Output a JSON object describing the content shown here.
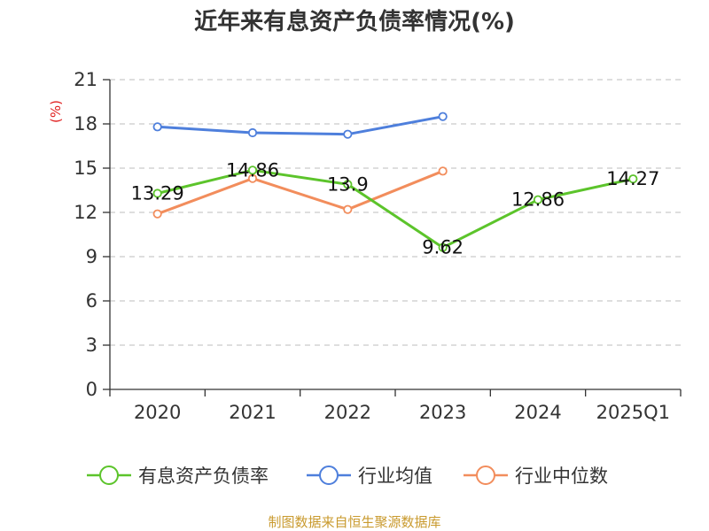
{
  "chart_data": {
    "type": "line",
    "title": "近年来有息资产负债率情况(%)",
    "unit_label": "(%)",
    "categories": [
      "2020",
      "2021",
      "2022",
      "2023",
      "2024",
      "2025Q1"
    ],
    "ylim": [
      0,
      21
    ],
    "yticks": [
      "0",
      "3",
      "6",
      "9",
      "12",
      "15",
      "18",
      "21"
    ],
    "grid": true,
    "legend_position": "bottom",
    "series": [
      {
        "name": "有息资产负债率",
        "color": "#5cc42b",
        "values": [
          13.29,
          14.86,
          13.9,
          9.62,
          12.86,
          14.27
        ],
        "data_labels": [
          "13.29",
          "14.86",
          "13.9",
          "9.62",
          "12.86",
          "14.27"
        ]
      },
      {
        "name": "行业均值",
        "color": "#4e7fdc",
        "values": [
          17.8,
          17.4,
          17.3,
          18.5,
          null,
          null
        ],
        "data_labels": []
      },
      {
        "name": "行业中位数",
        "color": "#f28d5c",
        "values": [
          11.9,
          14.3,
          12.2,
          14.8,
          null,
          null
        ],
        "data_labels": []
      }
    ],
    "source": "制图数据来自恒生聚源数据库"
  }
}
